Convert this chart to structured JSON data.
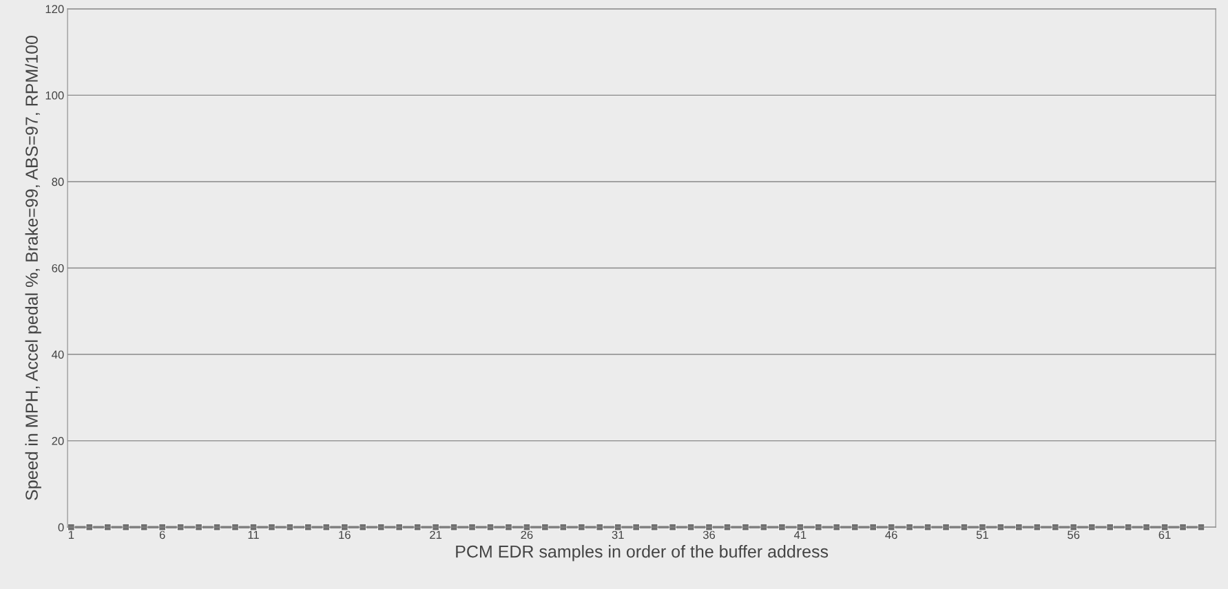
{
  "chart_data": {
    "type": "line",
    "xlabel": "PCM EDR samples in order of the buffer address",
    "ylabel": "Speed in MPH, Accel pedal %, Brake=99, ABS=97, RPM/100",
    "categories": [
      "1",
      null,
      null,
      null,
      null,
      "6",
      null,
      null,
      null,
      null,
      "11",
      null,
      null,
      null,
      null,
      "16",
      null,
      null,
      null,
      null,
      "21",
      null,
      null,
      null,
      null,
      "26",
      null,
      null,
      null,
      null,
      "31",
      null,
      null,
      null,
      null,
      "36",
      null,
      null,
      null,
      null,
      "41",
      null,
      null,
      null,
      null,
      "46",
      null,
      null,
      null,
      null,
      "51",
      null,
      null,
      null,
      null,
      "56",
      null,
      null,
      null,
      null,
      "61",
      null,
      null
    ],
    "series": [
      {
        "color": "#6e6e6e",
        "values": [
          0,
          0,
          0,
          0,
          0,
          0,
          0,
          0,
          0,
          0,
          0,
          0,
          0,
          0,
          0,
          0,
          0,
          0,
          0,
          0,
          0,
          0,
          0,
          0,
          0,
          0,
          0,
          0,
          0,
          0,
          0,
          0,
          0,
          0,
          0,
          0,
          0,
          0,
          0,
          0,
          0,
          0,
          0,
          0,
          0,
          0,
          0,
          0,
          0,
          0,
          0,
          0,
          0,
          0,
          0,
          0,
          0,
          0,
          0,
          0,
          0,
          0,
          0
        ]
      }
    ],
    "ylim": [
      0,
      120
    ],
    "yticks": [
      0,
      20,
      40,
      60,
      80,
      100,
      120
    ],
    "grid": "y",
    "marker": "square",
    "line_style": "solid"
  }
}
